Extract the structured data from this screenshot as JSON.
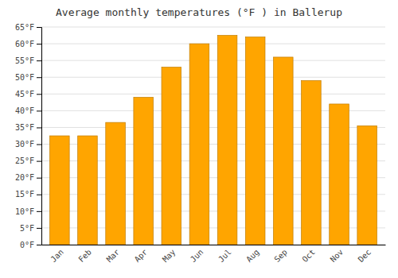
{
  "chart_data": {
    "type": "bar",
    "title": "Average monthly temperatures (°F ) in Ballerup",
    "categories": [
      "Jan",
      "Feb",
      "Mar",
      "Apr",
      "May",
      "Jun",
      "Jul",
      "Aug",
      "Sep",
      "Oct",
      "Nov",
      "Dec"
    ],
    "values": [
      32.5,
      32.5,
      36.5,
      44,
      53,
      60,
      62.5,
      62,
      56,
      49,
      42,
      35.5
    ],
    "color": "#FFA500",
    "ylim": [
      0,
      65
    ],
    "yticks": [
      {
        "value": 0,
        "label": "0°F"
      },
      {
        "value": 5,
        "label": "5°F"
      },
      {
        "value": 10,
        "label": "10°F"
      },
      {
        "value": 15,
        "label": "15°F"
      },
      {
        "value": 20,
        "label": "20°F"
      },
      {
        "value": 25,
        "label": "25°F"
      },
      {
        "value": 30,
        "label": "30°F"
      },
      {
        "value": 35,
        "label": "35°F"
      },
      {
        "value": 40,
        "label": "40°F"
      },
      {
        "value": 45,
        "label": "45°F"
      },
      {
        "value": 50,
        "label": "50°F"
      },
      {
        "value": 55,
        "label": "55°F"
      },
      {
        "value": 60,
        "label": "60°F"
      },
      {
        "value": 65,
        "label": "65°F"
      }
    ],
    "grid": true
  }
}
